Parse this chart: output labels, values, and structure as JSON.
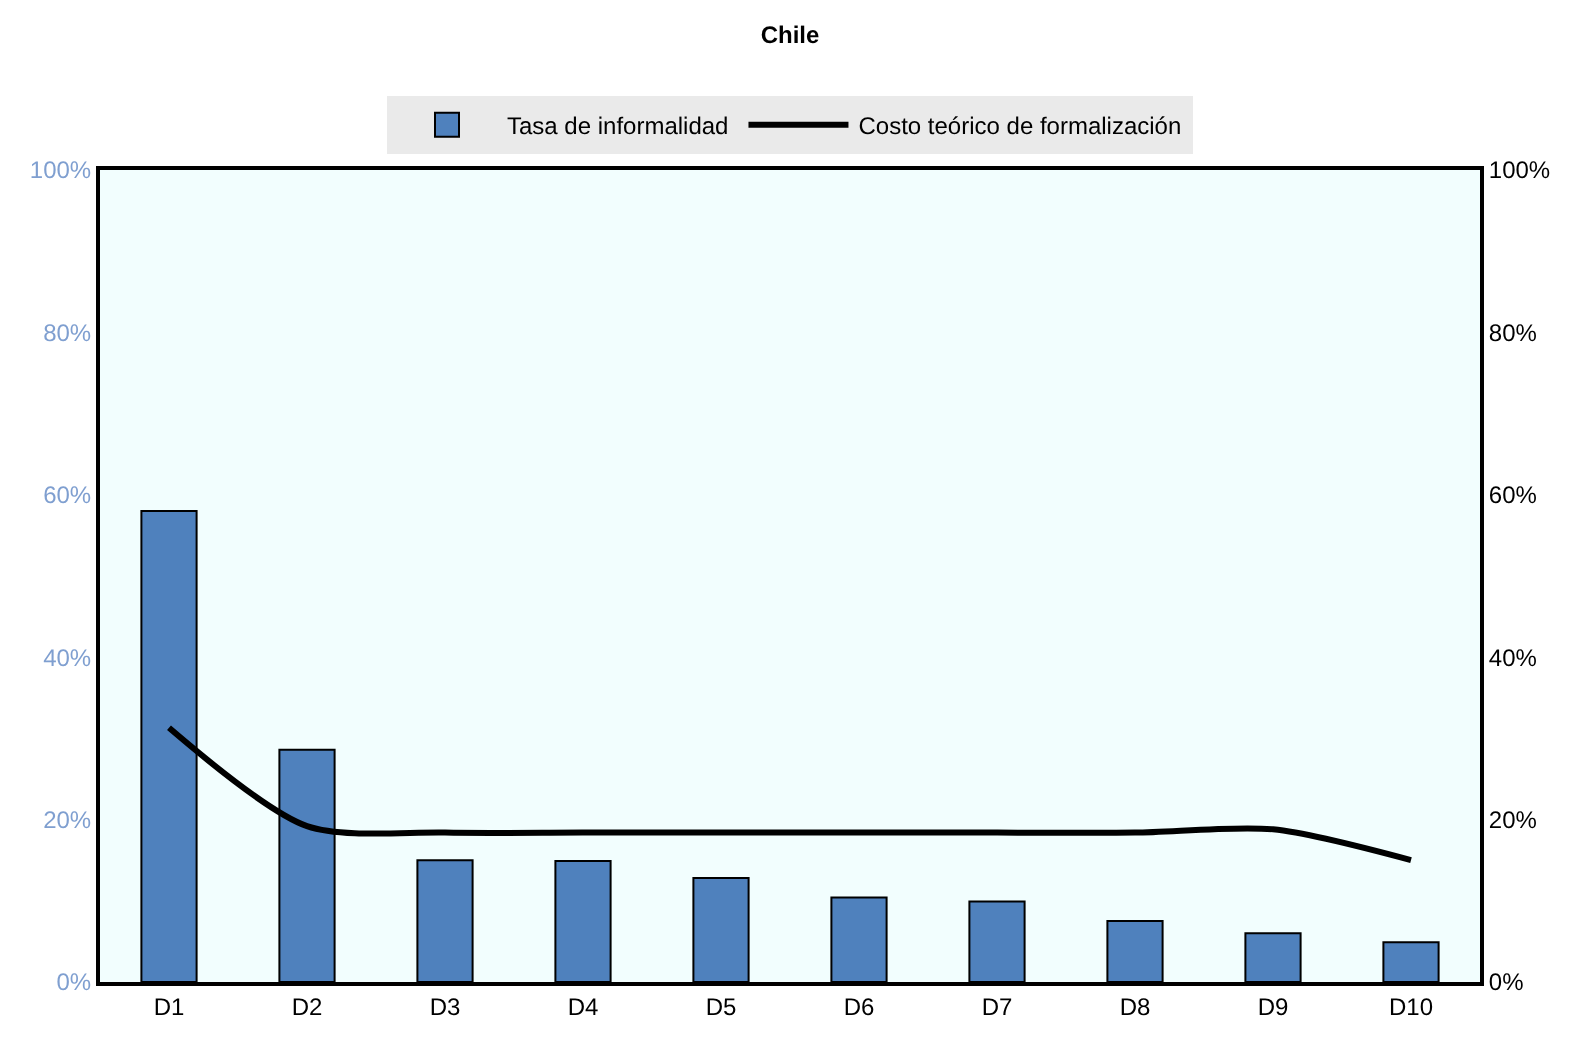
{
  "chart_data": {
    "type": "bar",
    "title": "Chile",
    "categories": [
      "D1",
      "D2",
      "D3",
      "D4",
      "D5",
      "D6",
      "D7",
      "D8",
      "D9",
      "D10"
    ],
    "series": [
      {
        "name": "Tasa de informalidad",
        "color": "#4f81bd",
        "values": [
          58.0,
          28.6,
          15.0,
          14.9,
          12.8,
          10.4,
          9.9,
          7.5,
          6.0,
          4.9
        ]
      },
      {
        "name": "Costo teórico de formalización",
        "type": "line",
        "axis": "y2",
        "color": "#000000",
        "values": [
          31.3,
          19.2,
          18.4,
          18.4,
          18.4,
          18.4,
          18.4,
          18.4,
          18.8,
          15.0
        ]
      }
    ],
    "ylim": [
      0,
      100
    ],
    "yticks": [
      {
        "value": 0,
        "label": "0%"
      },
      {
        "value": 20,
        "label": "20%"
      },
      {
        "value": 40,
        "label": "40%"
      },
      {
        "value": 60,
        "label": "60%"
      },
      {
        "value": 80,
        "label": "80%"
      },
      {
        "value": 100,
        "label": "100%"
      }
    ],
    "y2lim": [
      0,
      100
    ],
    "y2ticks": [
      {
        "value": 0,
        "label": "0%"
      },
      {
        "value": 20,
        "label": "20%"
      },
      {
        "value": 40,
        "label": "40%"
      },
      {
        "value": 60,
        "label": "60%"
      },
      {
        "value": 80,
        "label": "80%"
      },
      {
        "value": 100,
        "label": "100%"
      }
    ],
    "legend": "top",
    "grid": false,
    "marker": "none",
    "line_style": "solid"
  }
}
